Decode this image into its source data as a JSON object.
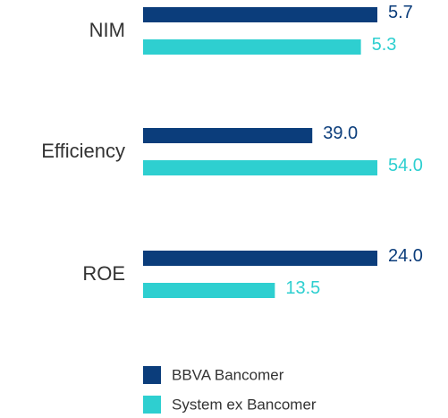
{
  "chart_data": {
    "type": "hbar",
    "categories": [
      "NIM",
      "Efficiency",
      "ROE"
    ],
    "series": [
      {
        "name": "BBVA Bancomer",
        "color": "#0b3d7b",
        "values": [
          5.7,
          39.0,
          24.0
        ],
        "value_labels": [
          "5.7",
          "39.0",
          "24.0"
        ]
      },
      {
        "name": "System ex Bancomer",
        "color": "#2ecfd0",
        "values": [
          5.3,
          54.0,
          13.5
        ],
        "value_labels": [
          "5.3",
          "54.0",
          "13.5"
        ]
      }
    ],
    "legend": "bottom"
  }
}
